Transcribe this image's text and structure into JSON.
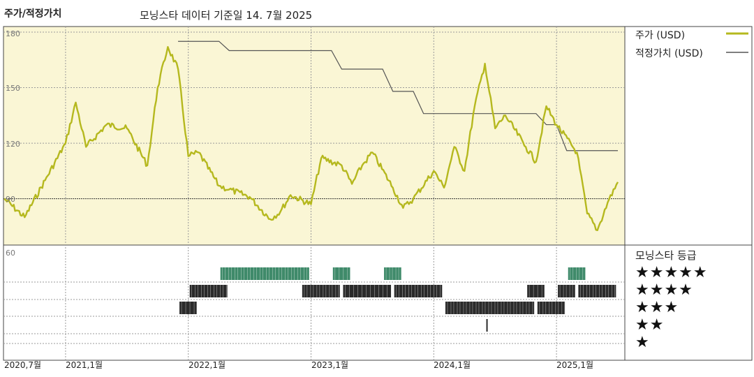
{
  "header": {
    "left_title": "주가/적정가치",
    "main_title": "모닝스타 데이터 기준일 14. 7월 2025"
  },
  "colors": {
    "price": "#b5b81e",
    "fair_value": "#555555",
    "upper_bg": "#faf6d5",
    "star5_bar": "#3f8a6a",
    "star_bar": "#2a2a2a"
  },
  "chart_data": [
    {
      "type": "line",
      "y_ticks": [
        "180",
        "150",
        "120",
        "90"
      ],
      "ylim": [
        65,
        183
      ],
      "grid": true,
      "legend_position": "top-right",
      "x_ticks": [
        "2020,7월",
        "2021,1월",
        "2022,1월",
        "2023,1월",
        "2024,1월",
        "2025,1월"
      ],
      "series": [
        {
          "name": "주가 (USD)",
          "x": [
            "2020-07",
            "2020-09",
            "2020-11",
            "2021-01",
            "2021-02",
            "2021-03",
            "2021-05",
            "2021-07",
            "2021-09",
            "2021-10",
            "2021-11",
            "2021-12",
            "2022-01",
            "2022-02",
            "2022-04",
            "2022-05",
            "2022-07",
            "2022-09",
            "2022-10",
            "2022-11",
            "2023-01",
            "2023-02",
            "2023-04",
            "2023-05",
            "2023-06",
            "2023-07",
            "2023-09",
            "2023-10",
            "2023-11",
            "2024-01",
            "2024-02",
            "2024-03",
            "2024-04",
            "2024-05",
            "2024-06",
            "2024-07",
            "2024-08",
            "2024-10",
            "2024-11",
            "2024-12",
            "2025-01",
            "2025-03",
            "2025-04",
            "2025-05",
            "2025-06",
            "2025-07"
          ],
          "values": [
            90,
            80,
            100,
            120,
            142,
            118,
            130,
            128,
            108,
            150,
            172,
            160,
            113,
            115,
            97,
            95,
            91,
            79,
            83,
            92,
            87,
            112,
            108,
            98,
            108,
            115,
            96,
            85,
            90,
            105,
            96,
            118,
            105,
            140,
            163,
            128,
            135,
            118,
            110,
            140,
            130,
            115,
            82,
            73,
            88,
            99
          ]
        },
        {
          "name": "적정가치 (USD)",
          "x": [
            "2021-12",
            "2022-04",
            "2022-05",
            "2023-03",
            "2023-04",
            "2023-08",
            "2023-09",
            "2023-11",
            "2023-12",
            "2024-08",
            "2024-09",
            "2024-11",
            "2024-12",
            "2025-01",
            "2025-02",
            "2025-07"
          ],
          "values": [
            175,
            175,
            170,
            170,
            160,
            160,
            148,
            148,
            136,
            136,
            136,
            136,
            130,
            130,
            116,
            116
          ]
        }
      ]
    },
    {
      "type": "rating-timeline",
      "title": "모닝스타 등급",
      "y_tick": "60",
      "levels": [
        "★★★★★",
        "★★★★",
        "★★★",
        "★★",
        "★"
      ],
      "segments": [
        {
          "level": 5,
          "start": "2022-04",
          "end": "2022-12"
        },
        {
          "level": 5,
          "start": "2023-03",
          "end": "2023-04"
        },
        {
          "level": 5,
          "start": "2023-08",
          "end": "2023-09"
        },
        {
          "level": 5,
          "start": "2025-02",
          "end": "2025-03"
        },
        {
          "level": 4,
          "start": "2022-01",
          "end": "2022-04"
        },
        {
          "level": 4,
          "start": "2022-12",
          "end": "2023-03"
        },
        {
          "level": 4,
          "start": "2023-04",
          "end": "2023-08"
        },
        {
          "level": 4,
          "start": "2023-09",
          "end": "2024-01"
        },
        {
          "level": 4,
          "start": "2024-10",
          "end": "2024-11"
        },
        {
          "level": 4,
          "start": "2025-01",
          "end": "2025-02"
        },
        {
          "level": 4,
          "start": "2025-03",
          "end": "2025-06"
        },
        {
          "level": 3,
          "start": "2021-12",
          "end": "2022-01"
        },
        {
          "level": 3,
          "start": "2024-02",
          "end": "2024-10"
        },
        {
          "level": 3,
          "start": "2024-11",
          "end": "2025-01"
        },
        {
          "level": 2,
          "start": "2024-06",
          "end": "2024-06"
        }
      ]
    }
  ]
}
